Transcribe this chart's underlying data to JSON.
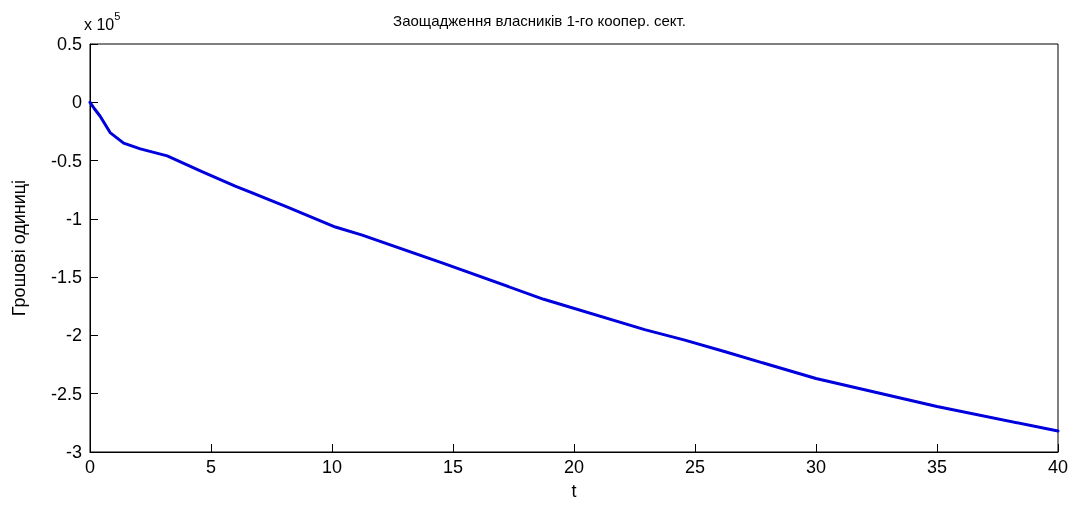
{
  "chart_data": {
    "type": "line",
    "title": "Заощадження власників 1-го коопер. сект.",
    "xlabel": "t",
    "ylabel": "Грошові одиниці",
    "annotations": [
      "x 10$^{5}$"
    ],
    "x": [
      0,
      0.2,
      0.42,
      0.83,
      1.39,
      2.08,
      3.19,
      4.58,
      6.0,
      8.06,
      10.14,
      11.25,
      14.58,
      18.75,
      22.92,
      24.58,
      26.25,
      30,
      35,
      40
    ],
    "series": [
      {
        "color": "#0000dd",
        "values": [
          0,
          -0.06,
          -0.12,
          -0.26,
          -0.35,
          -0.4,
          -0.46,
          -0.59,
          -0.72,
          -0.89,
          -1.07,
          -1.14,
          -1.38,
          -1.69,
          -1.95,
          -2.04,
          -2.14,
          -2.37,
          -2.61,
          -2.82
        ]
      }
    ],
    "xlim": [
      0,
      40
    ],
    "xticks": [
      0,
      5,
      10,
      15,
      20,
      25,
      30,
      35,
      40
    ],
    "ylim": [
      -3,
      0.5
    ],
    "yticks": [
      -3,
      -2.5,
      -2,
      -1.5,
      -1,
      -0.5,
      0,
      0.5
    ],
    "grid": false,
    "marker": "none",
    "line_style": "solid"
  }
}
